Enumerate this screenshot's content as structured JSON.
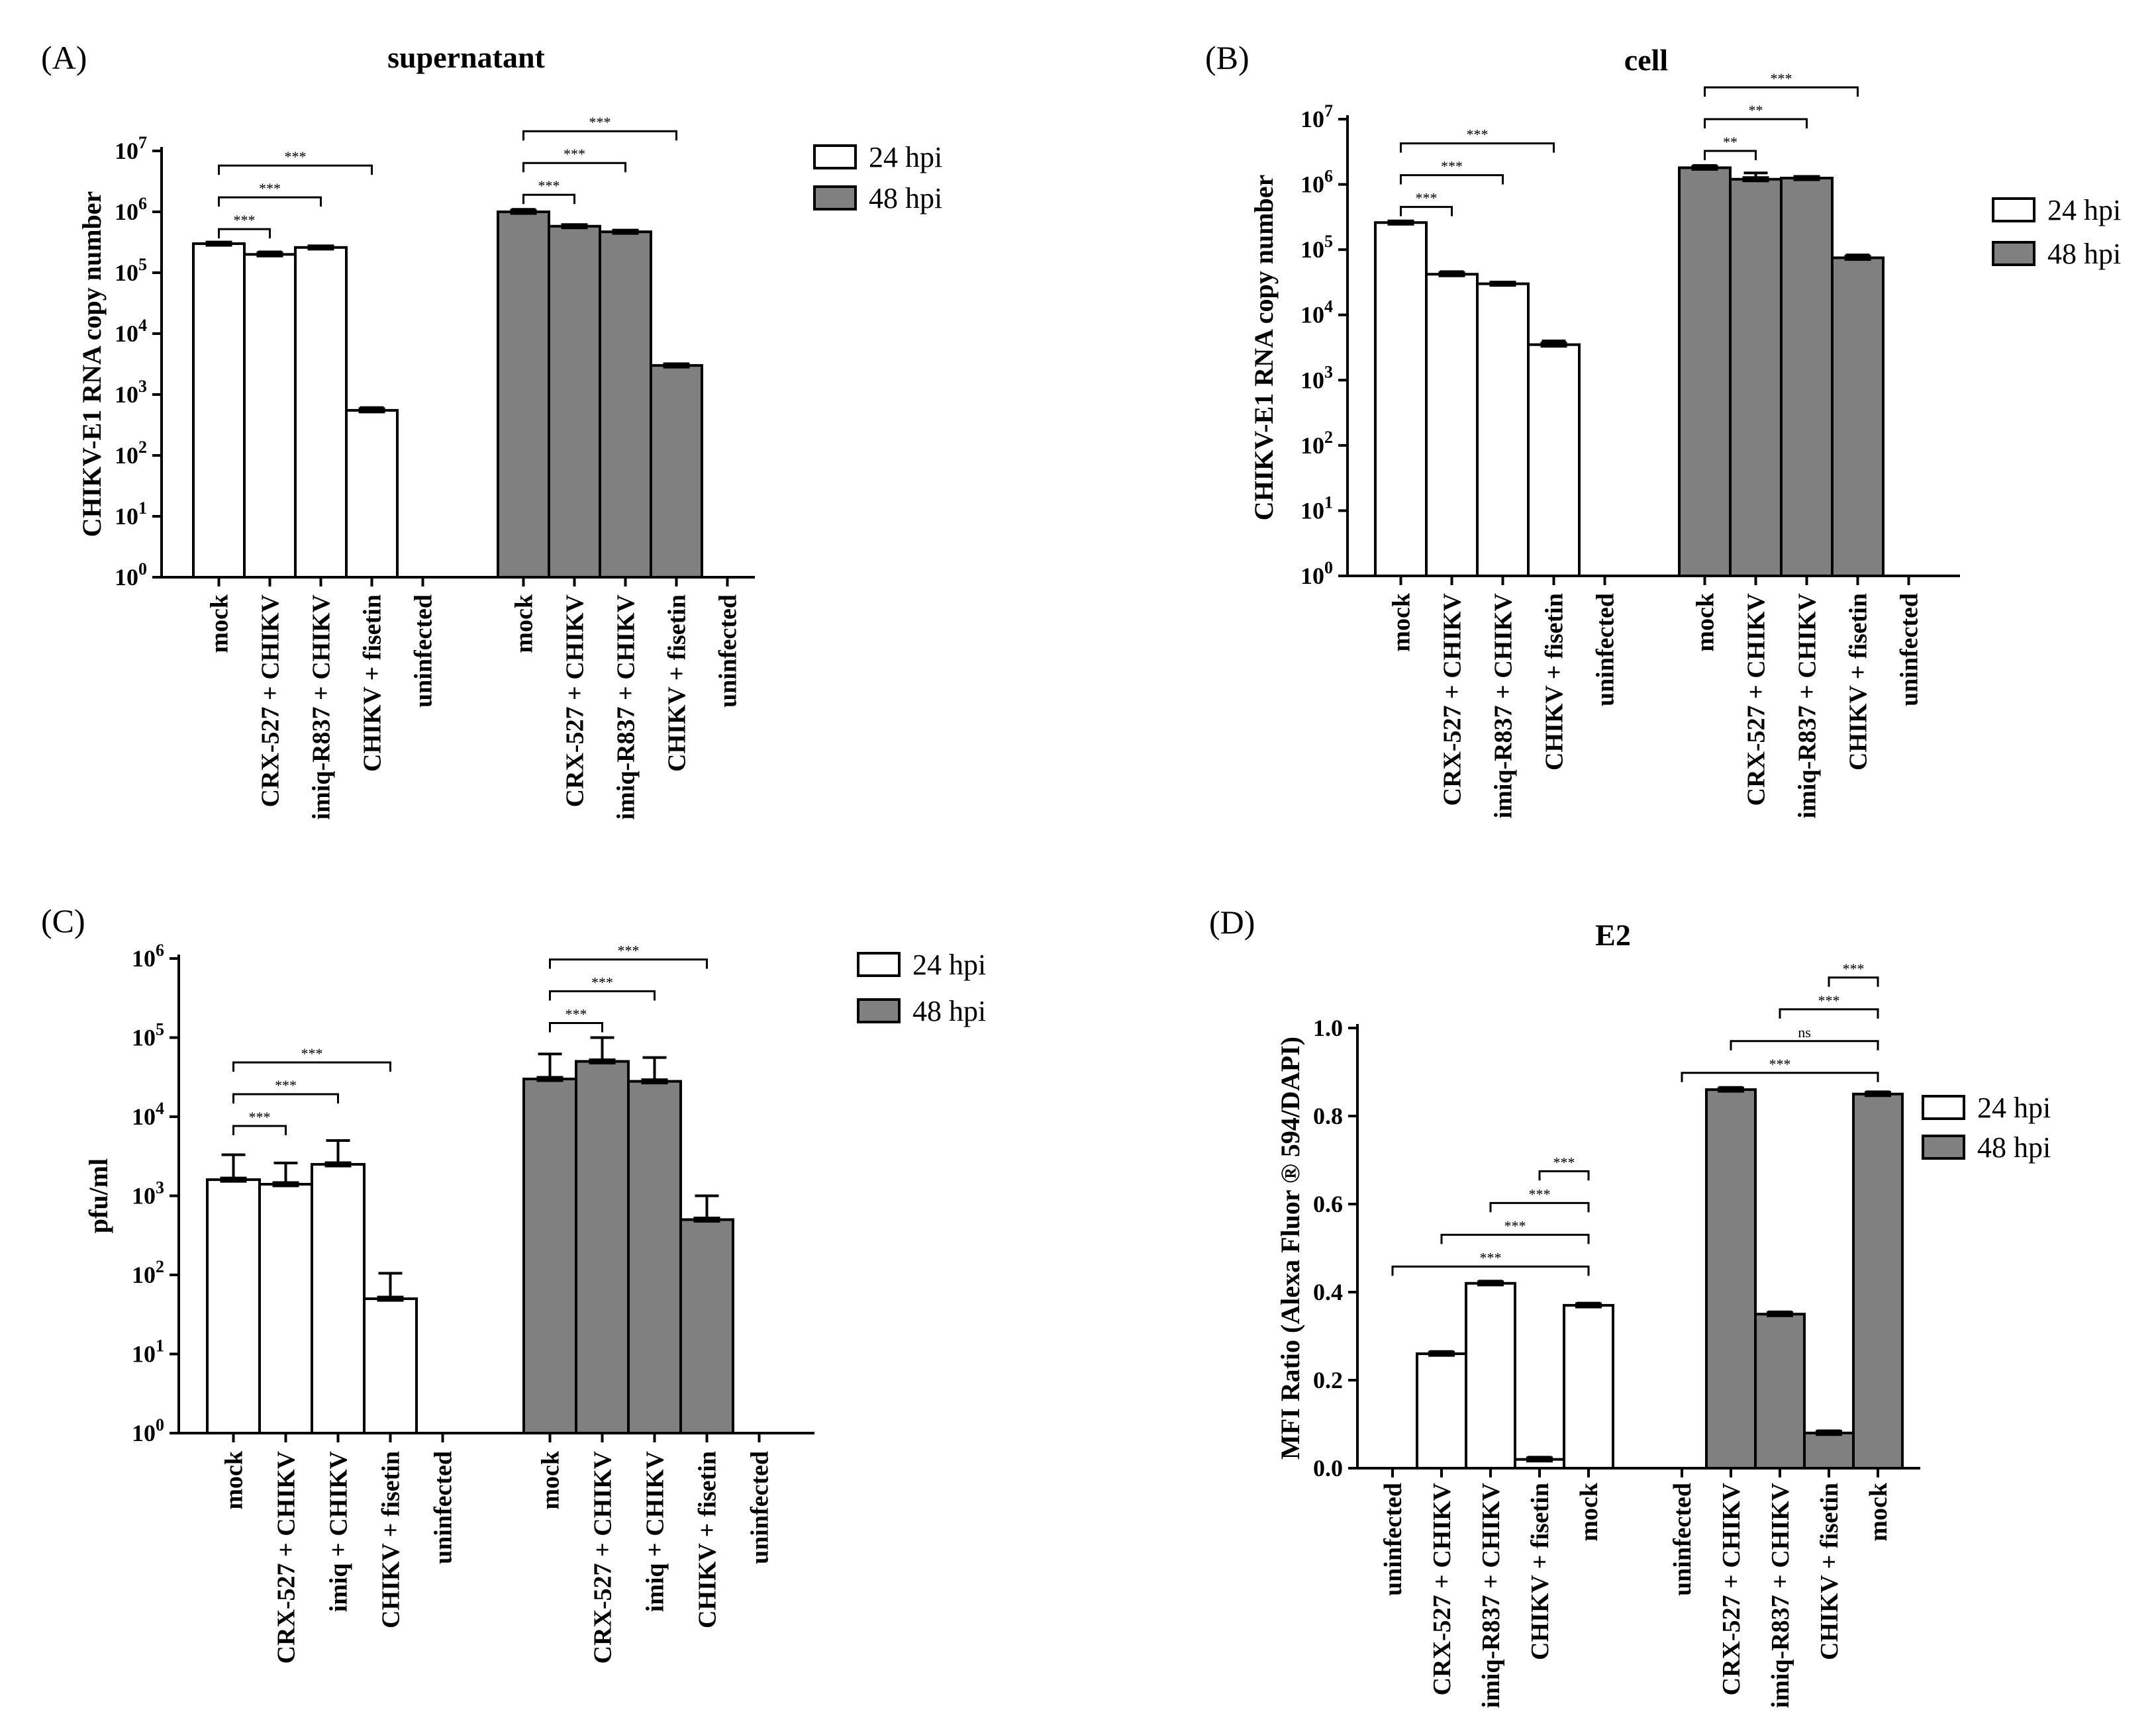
{
  "colors": {
    "h24": "#ffffff",
    "h48": "#808080",
    "stroke": "#000000"
  },
  "chart_data": [
    {
      "id": "A",
      "panel_label": "(A)",
      "type": "bar",
      "title": "supernatant",
      "ylabel": "CHIKV-E1 RNA copy number",
      "scale": "log",
      "ylim": [
        1,
        10000000
      ],
      "yticks": [
        {
          "b": "10",
          "e": "0"
        },
        {
          "b": "10",
          "e": "1"
        },
        {
          "b": "10",
          "e": "2"
        },
        {
          "b": "10",
          "e": "3"
        },
        {
          "b": "10",
          "e": "4"
        },
        {
          "b": "10",
          "e": "5"
        },
        {
          "b": "10",
          "e": "6"
        },
        {
          "b": "10",
          "e": "7"
        }
      ],
      "legend": [
        "24 hpi",
        "48 hpi"
      ],
      "groups": [
        {
          "series": "24 hpi",
          "categories": [
            "mock",
            "CRX-527 + CHIKV",
            "imiq-R837 + CHIKV",
            "CHIKV + fisetin",
            "uninfected"
          ],
          "values": [
            300000,
            200000,
            260000,
            550,
            null
          ],
          "errors": [
            0,
            20000,
            0,
            60,
            null
          ],
          "brackets": [
            {
              "from": 0,
              "to": 1,
              "label": "***"
            },
            {
              "from": 0,
              "to": 2,
              "label": "***"
            },
            {
              "from": 0,
              "to": 3,
              "label": "***"
            }
          ]
        },
        {
          "series": "48 hpi",
          "categories": [
            "mock",
            "CRX-527 + CHIKV",
            "imiq-R837 + CHIKV",
            "CHIKV + fisetin",
            "uninfected"
          ],
          "values": [
            1000000,
            580000,
            470000,
            3000,
            null
          ],
          "errors": [
            100000,
            30000,
            0,
            200,
            null
          ],
          "brackets": [
            {
              "from": 0,
              "to": 1,
              "label": "***"
            },
            {
              "from": 0,
              "to": 2,
              "label": "***"
            },
            {
              "from": 0,
              "to": 3,
              "label": "***"
            }
          ]
        }
      ]
    },
    {
      "id": "B",
      "panel_label": "(B)",
      "type": "bar",
      "title": "cell",
      "ylabel": "CHIKV-E1 RNA copy number",
      "scale": "log",
      "ylim": [
        1,
        10000000
      ],
      "yticks": [
        {
          "b": "10",
          "e": "0"
        },
        {
          "b": "10",
          "e": "1"
        },
        {
          "b": "10",
          "e": "2"
        },
        {
          "b": "10",
          "e": "3"
        },
        {
          "b": "10",
          "e": "4"
        },
        {
          "b": "10",
          "e": "5"
        },
        {
          "b": "10",
          "e": "6"
        },
        {
          "b": "10",
          "e": "7"
        }
      ],
      "legend": [
        "24 hpi",
        "48 hpi"
      ],
      "groups": [
        {
          "series": "24 hpi",
          "categories": [
            "mock",
            "CRX-527 + CHIKV",
            "imiq-R837 + CHIKV",
            "CHIKV + fisetin",
            "uninfected"
          ],
          "values": [
            260000,
            42000,
            30000,
            3500,
            null
          ],
          "errors": [
            10000,
            4000,
            0,
            500,
            null
          ],
          "brackets": [
            {
              "from": 0,
              "to": 1,
              "label": "***"
            },
            {
              "from": 0,
              "to": 2,
              "label": "***"
            },
            {
              "from": 0,
              "to": 3,
              "label": "***"
            }
          ]
        },
        {
          "series": "48 hpi",
          "categories": [
            "mock",
            "CRX-527 + CHIKV",
            "imiq-R837 + CHIKV",
            "CHIKV + fisetin",
            "uninfected"
          ],
          "values": [
            1800000,
            1200000,
            1250000,
            75000,
            null
          ],
          "errors": [
            150000,
            300000,
            0,
            8000,
            null
          ],
          "brackets": [
            {
              "from": 0,
              "to": 1,
              "label": "**"
            },
            {
              "from": 0,
              "to": 2,
              "label": "**"
            },
            {
              "from": 0,
              "to": 3,
              "label": "***"
            }
          ]
        }
      ]
    },
    {
      "id": "C",
      "panel_label": "(C)",
      "type": "bar",
      "title": "",
      "ylabel": "pfu/ml",
      "scale": "log",
      "ylim": [
        1,
        1000000
      ],
      "yticks": [
        {
          "b": "10",
          "e": "0"
        },
        {
          "b": "10",
          "e": "1"
        },
        {
          "b": "10",
          "e": "2"
        },
        {
          "b": "10",
          "e": "3"
        },
        {
          "b": "10",
          "e": "4"
        },
        {
          "b": "10",
          "e": "5"
        },
        {
          "b": "10",
          "e": "6"
        }
      ],
      "legend": [
        "24 hpi",
        "48 hpi"
      ],
      "groups": [
        {
          "series": "24 hpi",
          "categories": [
            "mock",
            "CRX-527 + CHIKV",
            "imiq + CHIKV",
            "CHIKV + fisetin",
            "uninfected"
          ],
          "values": [
            1600,
            1400,
            2500,
            50,
            null
          ],
          "errors": [
            1700,
            1200,
            2500,
            55,
            null
          ],
          "brackets": [
            {
              "from": 0,
              "to": 1,
              "label": "***"
            },
            {
              "from": 0,
              "to": 2,
              "label": "***"
            },
            {
              "from": 0,
              "to": 3,
              "label": "***"
            }
          ]
        },
        {
          "series": "48 hpi",
          "categories": [
            "mock",
            "CRX-527 + CHIKV",
            "imiq + CHIKV",
            "CHIKV + fisetin",
            "uninfected"
          ],
          "values": [
            30000,
            50000,
            28000,
            500,
            null
          ],
          "errors": [
            32000,
            50000,
            28000,
            500,
            null
          ],
          "brackets": [
            {
              "from": 0,
              "to": 1,
              "label": "***"
            },
            {
              "from": 0,
              "to": 2,
              "label": "***"
            },
            {
              "from": 0,
              "to": 3,
              "label": "***"
            }
          ]
        }
      ]
    },
    {
      "id": "D",
      "panel_label": "(D)",
      "type": "bar",
      "title": "E2",
      "ylabel": "MFI Ratio (Alexa Fluor ® 594/DAPI)",
      "scale": "linear",
      "ylim": [
        0,
        1.0
      ],
      "yticks": [
        "0.0",
        "0.2",
        "0.4",
        "0.6",
        "0.8",
        "1.0"
      ],
      "legend": [
        "24 hpi",
        "48 hpi"
      ],
      "groups": [
        {
          "series": "24 hpi",
          "categories": [
            "uninfected",
            "CRX-527 + CHIKV",
            "imiq-R837 + CHIKV",
            "CHIKV + fisetin",
            "mock"
          ],
          "values": [
            null,
            0.26,
            0.42,
            0.02,
            0.37
          ],
          "errors": [
            null,
            0.005,
            0.005,
            0.005,
            0.005
          ],
          "brackets": [
            {
              "from": 4,
              "to": 0,
              "label": "***"
            },
            {
              "from": 4,
              "to": 1,
              "label": "***"
            },
            {
              "from": 4,
              "to": 2,
              "label": "***"
            },
            {
              "from": 4,
              "to": 3,
              "label": "***"
            }
          ]
        },
        {
          "series": "48 hpi",
          "categories": [
            "uninfected",
            "CRX-527 + CHIKV",
            "imiq-R837 + CHIKV",
            "CHIKV + fisetin",
            "mock"
          ],
          "values": [
            null,
            0.86,
            0.35,
            0.08,
            0.85
          ],
          "errors": [
            null,
            0.005,
            0.005,
            0.005,
            0.005
          ],
          "brackets": [
            {
              "from": 4,
              "to": 0,
              "label": "***"
            },
            {
              "from": 4,
              "to": 1,
              "label": "ns"
            },
            {
              "from": 4,
              "to": 2,
              "label": "***"
            },
            {
              "from": 4,
              "to": 3,
              "label": "***"
            }
          ]
        }
      ]
    }
  ]
}
